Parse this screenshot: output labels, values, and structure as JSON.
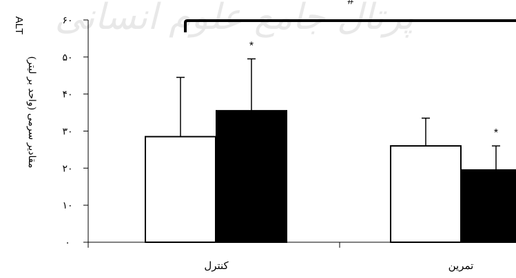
{
  "chart_data": {
    "type": "bar",
    "categories": [
      "کنترل",
      "تمرین"
    ],
    "series": [
      {
        "values": [
          28.5,
          26
        ],
        "errors": [
          16,
          7.5
        ],
        "fill": "#ffffff"
      },
      {
        "values": [
          35.5,
          19.5
        ],
        "errors": [
          14,
          6.5
        ],
        "fill": "#000000"
      }
    ],
    "ylabel_alt": "ALT",
    "ylabel": "مقادیر سرمی (واحد بر لیتر)",
    "ylim": [
      0,
      60
    ],
    "yticks": [
      0,
      10,
      20,
      30,
      40,
      50,
      60
    ],
    "ytick_labels": [
      "۰",
      "۱۰",
      "۲۰",
      "۳۰",
      "۴۰",
      "۵۰",
      "۶۰"
    ],
    "star_label": "*",
    "hash_label": "#",
    "grid": false,
    "legend": "none"
  },
  "watermark": "پرتال جامع علوم انسانی"
}
